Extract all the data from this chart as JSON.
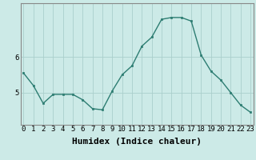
{
  "x": [
    0,
    1,
    2,
    3,
    4,
    5,
    6,
    7,
    8,
    9,
    10,
    11,
    12,
    13,
    14,
    15,
    16,
    17,
    18,
    19,
    20,
    21,
    22,
    23
  ],
  "y": [
    5.55,
    5.2,
    4.7,
    4.95,
    4.95,
    4.95,
    4.8,
    4.55,
    4.52,
    5.05,
    5.5,
    5.75,
    6.3,
    6.55,
    7.05,
    7.1,
    7.1,
    7.0,
    6.05,
    5.6,
    5.35,
    5.0,
    4.65,
    4.45
  ],
  "line_color": "#2d7d72",
  "marker": "s",
  "marker_size": 1.8,
  "bg_color": "#cceae7",
  "grid_color": "#aacfcc",
  "xlabel": "Humidex (Indice chaleur)",
  "xlabel_fontsize": 8,
  "tick_fontsize": 6.5,
  "ylim": [
    4.1,
    7.5
  ],
  "xlim": [
    -0.3,
    23.3
  ],
  "yticks": [
    5,
    6
  ],
  "xticks": [
    0,
    1,
    2,
    3,
    4,
    5,
    6,
    7,
    8,
    9,
    10,
    11,
    12,
    13,
    14,
    15,
    16,
    17,
    18,
    19,
    20,
    21,
    22,
    23
  ],
  "linewidth": 1.0,
  "spine_color": "#888888"
}
